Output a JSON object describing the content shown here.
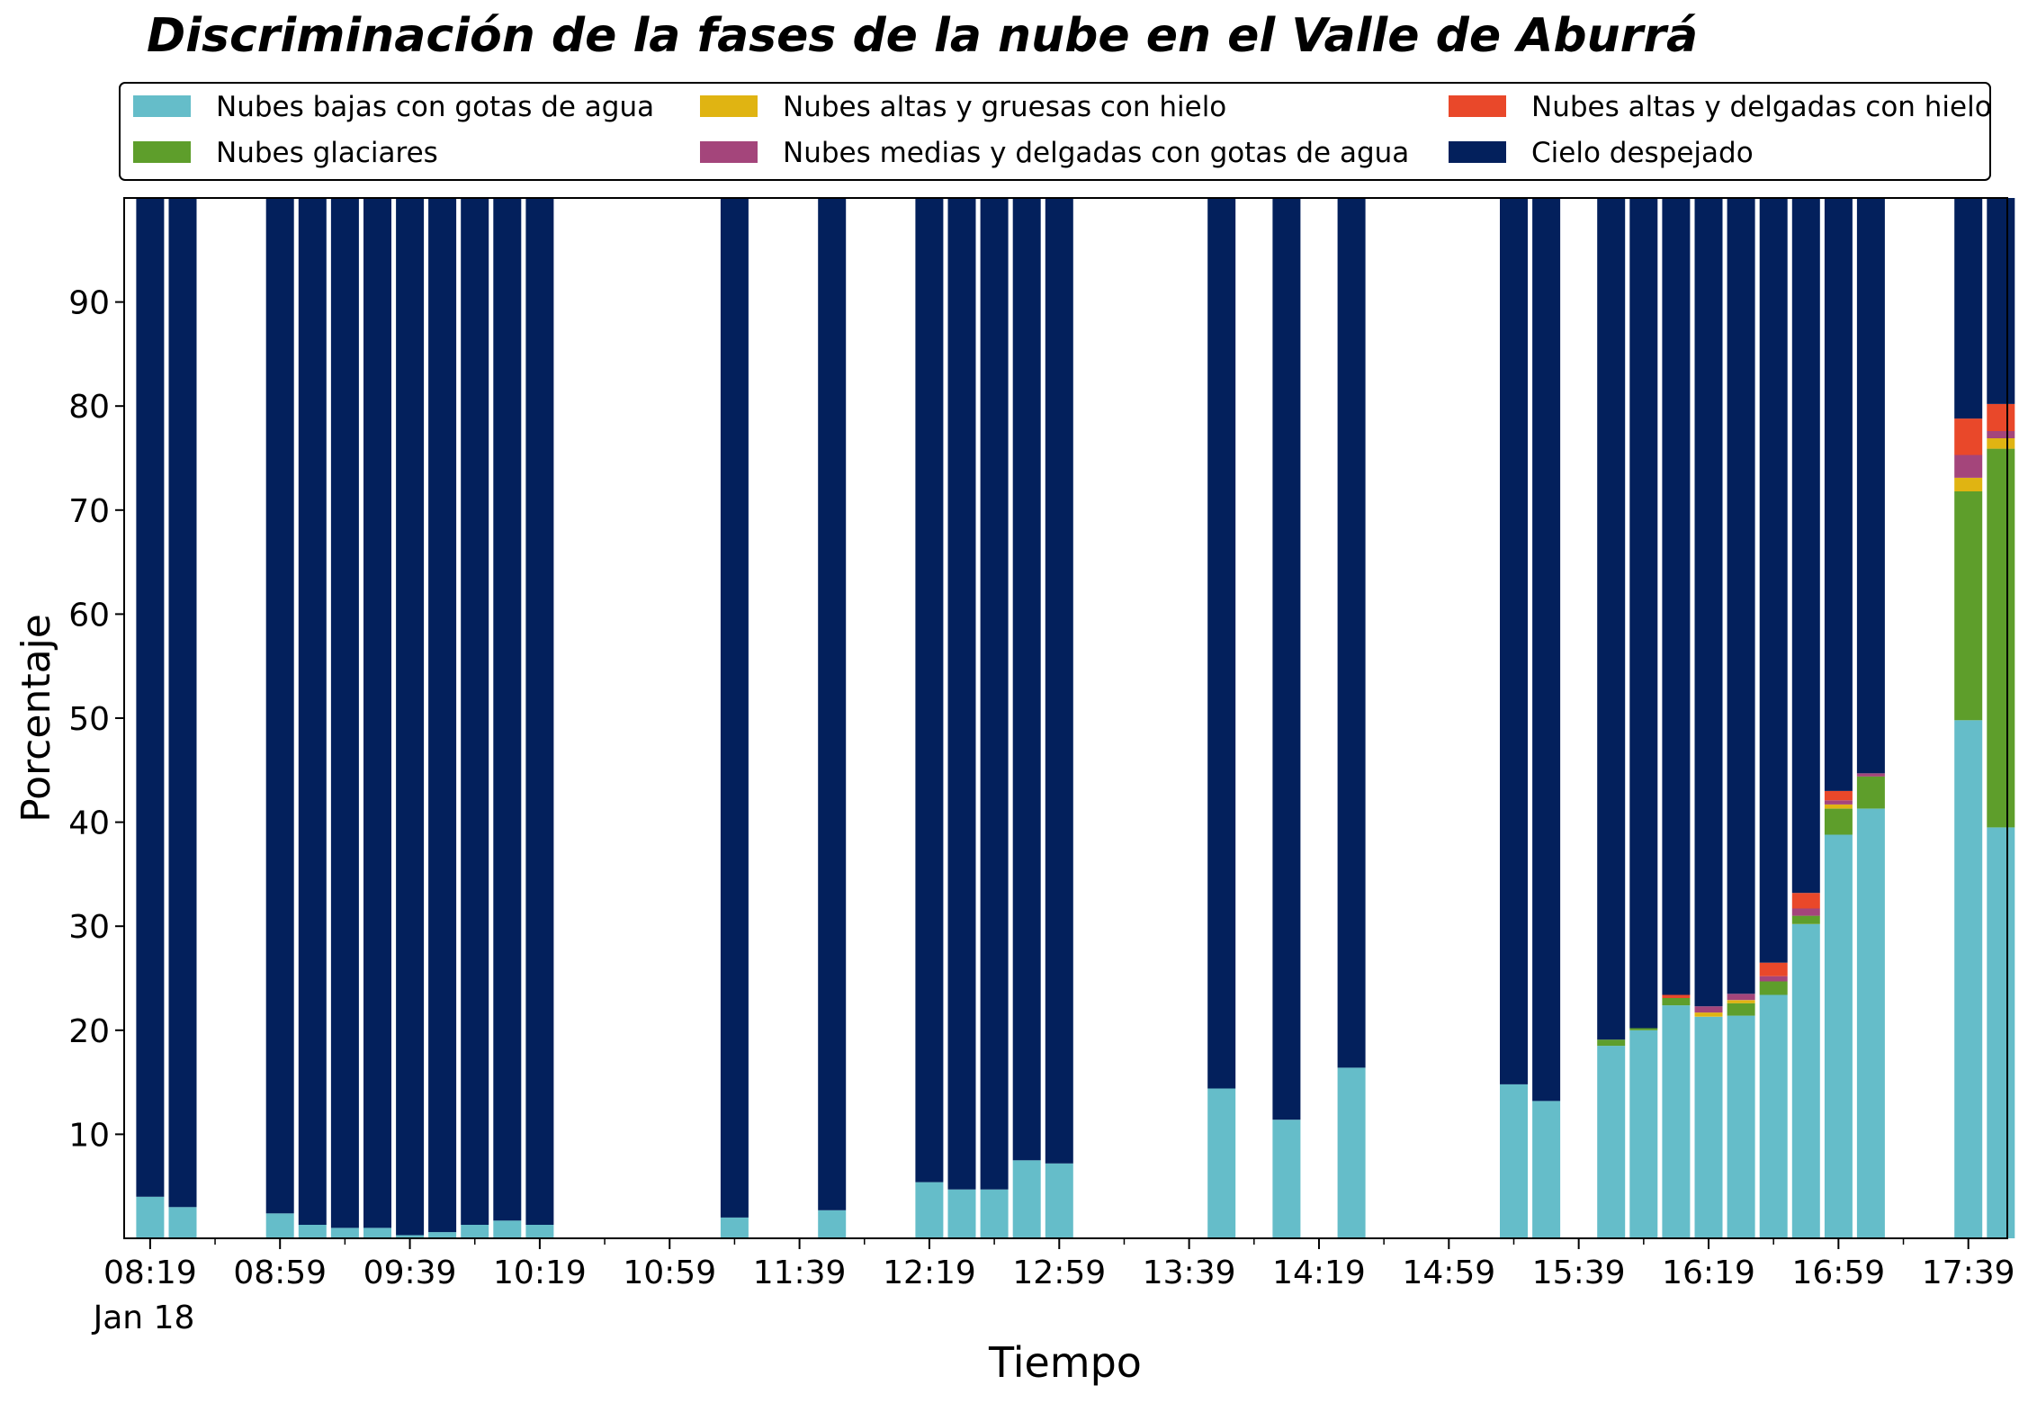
{
  "chart_data": {
    "type": "bar",
    "stacked": true,
    "title": "Discriminación de la fases de la nube en el Valle de Aburrá",
    "xlabel": "Tiempo",
    "ylabel": "Porcentaje",
    "ylim": [
      0,
      100
    ],
    "yticks": [
      10,
      20,
      30,
      40,
      50,
      60,
      70,
      80,
      90
    ],
    "grid": false,
    "legend_position": "top",
    "date_label": "Jan 18",
    "x_range": [
      "08:11",
      "17:51"
    ],
    "xtick_labels": [
      "08:19",
      "08:59",
      "09:39",
      "10:19",
      "10:59",
      "11:39",
      "12:19",
      "12:59",
      "13:39",
      "14:19",
      "14:59",
      "15:39",
      "16:19",
      "16:59",
      "17:39"
    ],
    "x": [
      "08:19",
      "08:29",
      "08:59",
      "09:09",
      "09:19",
      "09:29",
      "09:39",
      "09:49",
      "09:59",
      "10:09",
      "10:19",
      "11:19",
      "11:49",
      "12:19",
      "12:29",
      "12:39",
      "12:49",
      "12:59",
      "13:49",
      "14:09",
      "14:29",
      "15:19",
      "15:29",
      "15:49",
      "15:59",
      "16:09",
      "16:19",
      "16:29",
      "16:39",
      "16:49",
      "16:59",
      "17:09",
      "17:39",
      "17:49"
    ],
    "series": [
      {
        "name": "Nubes bajas con gotas de agua",
        "color": "#65bdc9",
        "values": [
          4,
          3,
          2.4,
          1.3,
          1,
          1,
          0.3,
          0.6,
          1.3,
          1.7,
          1.3,
          2,
          2.7,
          5.4,
          4.7,
          4.7,
          7.5,
          7.2,
          14.4,
          11.4,
          16.4,
          14.8,
          13.2,
          18.5,
          20,
          22.4,
          21.3,
          21.4,
          23.4,
          30.2,
          38.8,
          41.3,
          49.8,
          39.5
        ]
      },
      {
        "name": "Nubes glaciares",
        "color": "#5e9e2b",
        "values": [
          0,
          0,
          0,
          0,
          0,
          0,
          0,
          0,
          0,
          0,
          0,
          0,
          0,
          0,
          0,
          0,
          0,
          0,
          0,
          0,
          0,
          0,
          0,
          0.6,
          0.2,
          0.7,
          0,
          1.2,
          1.3,
          0.8,
          2.5,
          3.1,
          22,
          36.4
        ]
      },
      {
        "name": "Nubes altas y gruesas con hielo",
        "color": "#e0b412",
        "values": [
          0,
          0,
          0,
          0,
          0,
          0,
          0,
          0,
          0,
          0,
          0,
          0,
          0,
          0,
          0,
          0,
          0,
          0,
          0,
          0,
          0,
          0,
          0,
          0,
          0,
          0,
          0.4,
          0.3,
          0,
          0,
          0.4,
          0,
          1.3,
          1
        ]
      },
      {
        "name": "Nubes medias y delgadas con gotas de agua",
        "color": "#a4457b",
        "values": [
          0,
          0,
          0,
          0,
          0,
          0,
          0,
          0,
          0,
          0,
          0,
          0,
          0,
          0,
          0,
          0,
          0,
          0,
          0,
          0,
          0,
          0,
          0,
          0,
          0,
          0,
          0.6,
          0.6,
          0.5,
          0.7,
          0.4,
          0.3,
          2.2,
          0.7
        ]
      },
      {
        "name": "Nubes altas y delgadas con hielo",
        "color": "#e9482a",
        "values": [
          0,
          0,
          0,
          0,
          0,
          0,
          0,
          0,
          0,
          0,
          0,
          0,
          0,
          0,
          0,
          0,
          0,
          0,
          0,
          0,
          0,
          0,
          0,
          0,
          0,
          0.3,
          0,
          0,
          1.3,
          1.5,
          0.9,
          0,
          3.5,
          2.6
        ]
      },
      {
        "name": "Cielo despejado",
        "color": "#03205c",
        "values": [
          96,
          97,
          97.6,
          98.7,
          99,
          99,
          99.7,
          99.4,
          98.7,
          98.3,
          98.7,
          98,
          97.3,
          94.6,
          95.3,
          95.3,
          92.5,
          92.8,
          85.6,
          88.6,
          83.6,
          85.2,
          86.8,
          80.9,
          79.8,
          76.6,
          77.7,
          76.5,
          73.5,
          66.8,
          57,
          55.3,
          21.2,
          19.8
        ]
      }
    ]
  }
}
